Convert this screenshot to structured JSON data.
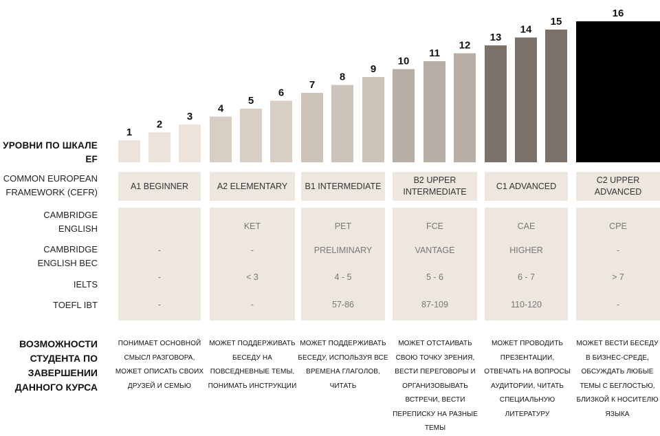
{
  "chart_data": {
    "type": "bar",
    "categories": [
      "1",
      "2",
      "3",
      "4",
      "5",
      "6",
      "7",
      "8",
      "9",
      "10",
      "11",
      "12",
      "13",
      "14",
      "15",
      "16"
    ],
    "values": [
      1,
      2,
      3,
      4,
      5,
      6,
      7,
      8,
      9,
      10,
      11,
      12,
      13,
      14,
      15,
      16
    ],
    "bar_colors": [
      "#ece4da",
      "#ece4da",
      "#ece4da",
      "#d8cec3",
      "#d8cec3",
      "#d8cec3",
      "#cdc3b8",
      "#cdc3b8",
      "#cdc3b8",
      "#b7aea5",
      "#b7aea5",
      "#b7aea5",
      "#7b7168",
      "#7b7168",
      "#7b7168",
      "#000000"
    ],
    "title": "",
    "xlabel": "",
    "ylabel": ""
  },
  "labels": {
    "ef_scale": "УРОВНИ ПО ШКАЛЕ EF",
    "cefr": "COMMON EUROPEAN FRAMEWORK (CEFR)",
    "cambridge": "CAMBRIDGE ENGLISH",
    "cambridge_bec": "CAMBRIDGE ENGLISH BEC",
    "ielts": "IELTS",
    "toefl": "TOEFL IBT",
    "capabilities": "ВОЗМОЖНОСТИ СТУДЕНТА ПО ЗАВЕРШЕНИИ ДАННОГО КУРСА"
  },
  "columns": [
    {
      "cefr": "A1 BEGINNER",
      "cambridge": "",
      "bec": "-",
      "ielts": "-",
      "toefl": "-",
      "capability": "ПОНИМАЕТ ОСНОВНОЙ СМЫСЛ РАЗГОВОРА, МОЖЕТ ОПИСАТЬ СВОИХ ДРУЗЕЙ И СЕМЬЮ"
    },
    {
      "cefr": "A2 ELEMENTARY",
      "cambridge": "KET",
      "bec": "-",
      "ielts": "< 3",
      "toefl": "-",
      "capability": "МОЖЕТ ПОДДЕРЖИВАТЬ БЕСЕДУ НА ПОВСЕДНЕВНЫЕ ТЕМЫ, ПОНИМАТЬ ИНСТРУКЦИИ"
    },
    {
      "cefr": "B1 INTERMEDIATE",
      "cambridge": "PET",
      "bec": "PRELIMINARY",
      "ielts": "4 - 5",
      "toefl": "57-86",
      "capability": "МОЖЕТ ПОДДЕРЖИВАТЬ БЕСЕДУ, ИСПОЛЬЗУЯ ВСЕ ВРЕМЕНА ГЛАГОЛОВ, ЧИТАТЬ"
    },
    {
      "cefr": "B2 UPPER INTERMEDIATE",
      "cambridge": "FCE",
      "bec": "VANTAGE",
      "ielts": "5 - 6",
      "toefl": "87-109",
      "capability": "МОЖЕТ ОТСТАИВАТЬ СВОЮ ТОЧКУ ЗРЕНИЯ, ВЕСТИ ПЕРЕГОВОРЫ И ОРГАНИЗОВЫВАТЬ ВСТРЕЧИ, ВЕСТИ ПЕРЕПИСКУ НА РАЗНЫЕ ТЕМЫ"
    },
    {
      "cefr": "C1 ADVANCED",
      "cambridge": "CAE",
      "bec": "HIGHER",
      "ielts": "6 - 7",
      "toefl": "110-120",
      "capability": "МОЖЕТ ПРОВОДИТЬ ПРЕЗЕНТАЦИИ, ОТВЕЧАТЬ НА ВОПРОСЫ АУДИТОРИИ, ЧИТАТЬ СПЕЦИАЛЬНУЮ ЛИТЕРАТУРУ"
    },
    {
      "cefr": "C2 UPPER ADVANCED",
      "cambridge": "CPE",
      "bec": "-",
      "ielts": "> 7",
      "toefl": "-",
      "capability": "МОЖЕТ ВЕСТИ БЕСЕДУ В БИЗНЕС-СРЕДЕ, ОБСУЖДАТЬ ЛЮБЫЕ ТЕМЫ С БЕГЛОСТЬЮ, БЛИЗКОЙ К НОСИТЕЛЮ ЯЗЫКА"
    }
  ]
}
